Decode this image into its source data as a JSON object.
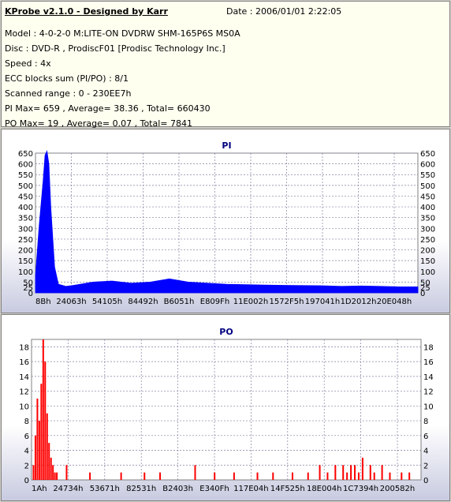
{
  "info": {
    "title": "KProbe v2.1.0 - Designed by Karr",
    "date": "Date : 2006/01/01 2:22:05",
    "lines": [
      "Model : 4-0-2-0 M:LITE-ON DVDRW SHM-165P6S MS0A",
      "Disc : DVD-R , ProdiscF01 [Prodisc Technology Inc.]",
      "Speed : 4x",
      "ECC blocks sum (PI/PO) : 8/1",
      "Scanned range : 0 - 230EE7h",
      "PI Max= 659 , Average= 38.36 , Total= 660430",
      "PO Max= 19 , Average= 0.07 , Total= 7841"
    ]
  },
  "chart_data": [
    {
      "type": "area",
      "title": "PI",
      "color": "#0000ff",
      "ylim": [
        0,
        650
      ],
      "yticks": [
        0,
        25,
        50,
        100,
        150,
        200,
        250,
        300,
        350,
        400,
        450,
        500,
        550,
        600,
        650
      ],
      "xticks": [
        "8Bh",
        "24063h",
        "54105h",
        "84492h",
        "B6051h",
        "E809Fh",
        "11E002h",
        "1572F5h",
        "197041h",
        "1D2012h",
        "20E048h"
      ],
      "grid": true,
      "x": [
        0,
        0.01,
        0.02,
        0.025,
        0.03,
        0.035,
        0.04,
        0.05,
        0.06,
        0.08,
        0.1,
        0.15,
        0.2,
        0.25,
        0.3,
        0.35,
        0.4,
        0.45,
        0.5,
        0.55,
        0.6,
        0.65,
        0.7,
        0.75,
        0.8,
        0.85,
        0.9,
        0.95,
        1.0
      ],
      "values": [
        80,
        320,
        520,
        640,
        659,
        600,
        400,
        120,
        40,
        30,
        35,
        50,
        55,
        45,
        50,
        65,
        50,
        45,
        40,
        38,
        36,
        35,
        34,
        33,
        30,
        32,
        30,
        28,
        28
      ]
    },
    {
      "type": "bar",
      "title": "PO",
      "color": "#ff0000",
      "ylim": [
        0,
        19
      ],
      "yticks": [
        0,
        2,
        4,
        6,
        8,
        10,
        12,
        14,
        16,
        18
      ],
      "xticks": [
        "1Ah",
        "24734h",
        "53671h",
        "82531h",
        "B2403h",
        "E340Fh",
        "117E04h",
        "14F525h",
        "18E004h",
        "1C7394h",
        "200582h"
      ],
      "grid": true,
      "x": [
        0.005,
        0.01,
        0.015,
        0.02,
        0.025,
        0.03,
        0.035,
        0.04,
        0.045,
        0.05,
        0.055,
        0.06,
        0.065,
        0.09,
        0.15,
        0.23,
        0.29,
        0.33,
        0.42,
        0.47,
        0.52,
        0.58,
        0.62,
        0.67,
        0.71,
        0.74,
        0.76,
        0.78,
        0.8,
        0.81,
        0.82,
        0.83,
        0.84,
        0.85,
        0.87,
        0.88,
        0.9,
        0.92,
        0.95,
        0.97
      ],
      "values": [
        2,
        6,
        11,
        8,
        13,
        19,
        16,
        9,
        5,
        3,
        2,
        1,
        1,
        2,
        1,
        1,
        1,
        1,
        2,
        1,
        1,
        1,
        1,
        1,
        1,
        2,
        1,
        2,
        2,
        1,
        2,
        2,
        1,
        3,
        2,
        1,
        2,
        1,
        1,
        1
      ]
    }
  ]
}
